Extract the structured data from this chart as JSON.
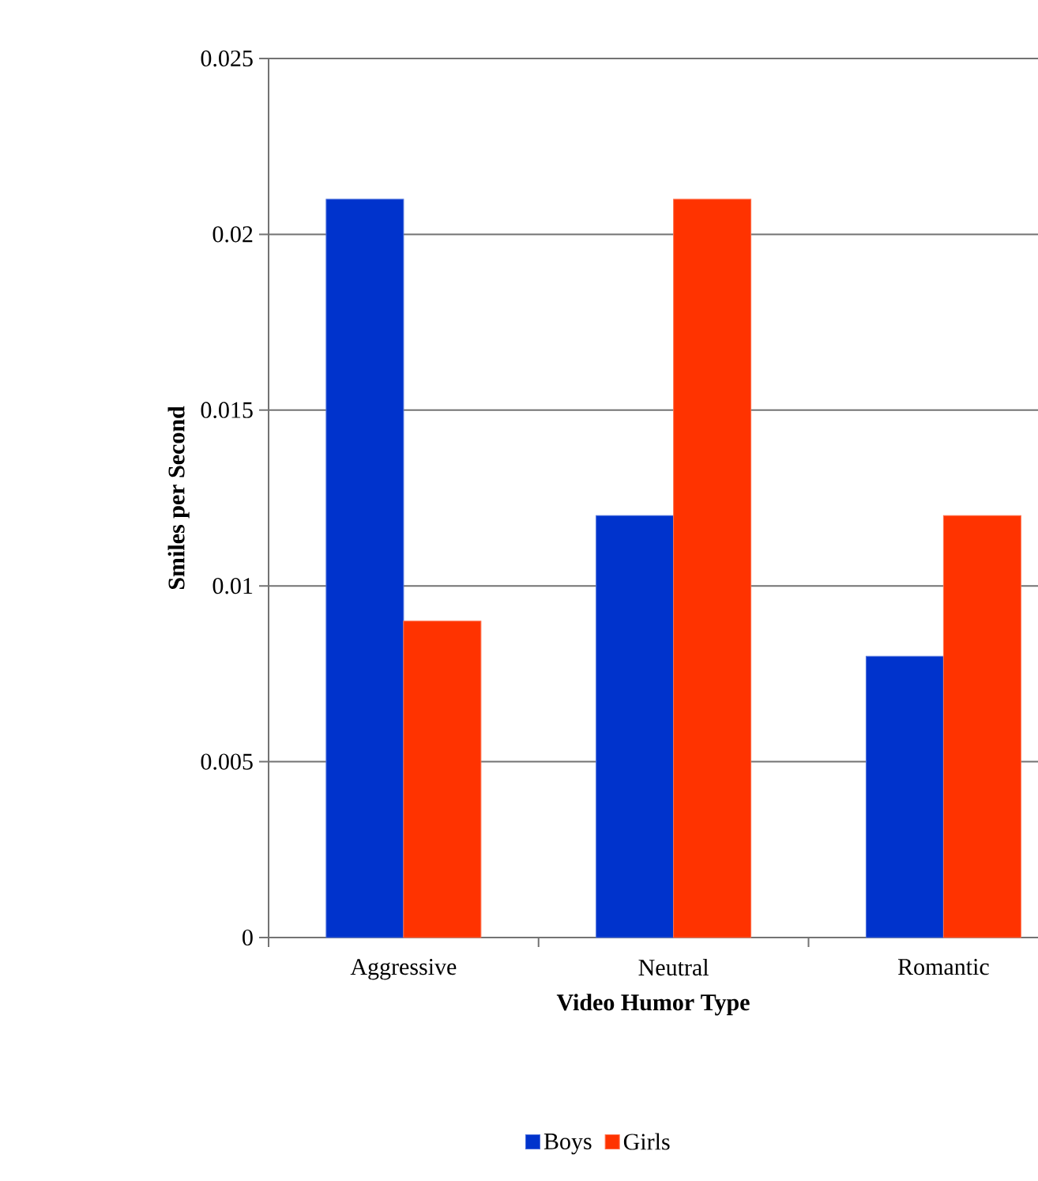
{
  "chart_data": {
    "type": "bar",
    "xlabel": "Video Humor Type",
    "ylabel": "Smiles per Second",
    "categories": [
      "Aggressive",
      "Neutral",
      "Romantic"
    ],
    "series": [
      {
        "name": "Boys",
        "color": "#0033cc",
        "values": [
          0.021,
          0.012,
          0.008
        ]
      },
      {
        "name": "Girls",
        "color": "#ff3300",
        "values": [
          0.009,
          0.021,
          0.012
        ]
      }
    ],
    "ylim": [
      0,
      0.025
    ],
    "yticks": [
      0,
      0.005,
      0.01,
      0.015,
      0.02,
      0.025
    ],
    "grid": "y",
    "legend": "bottom"
  }
}
